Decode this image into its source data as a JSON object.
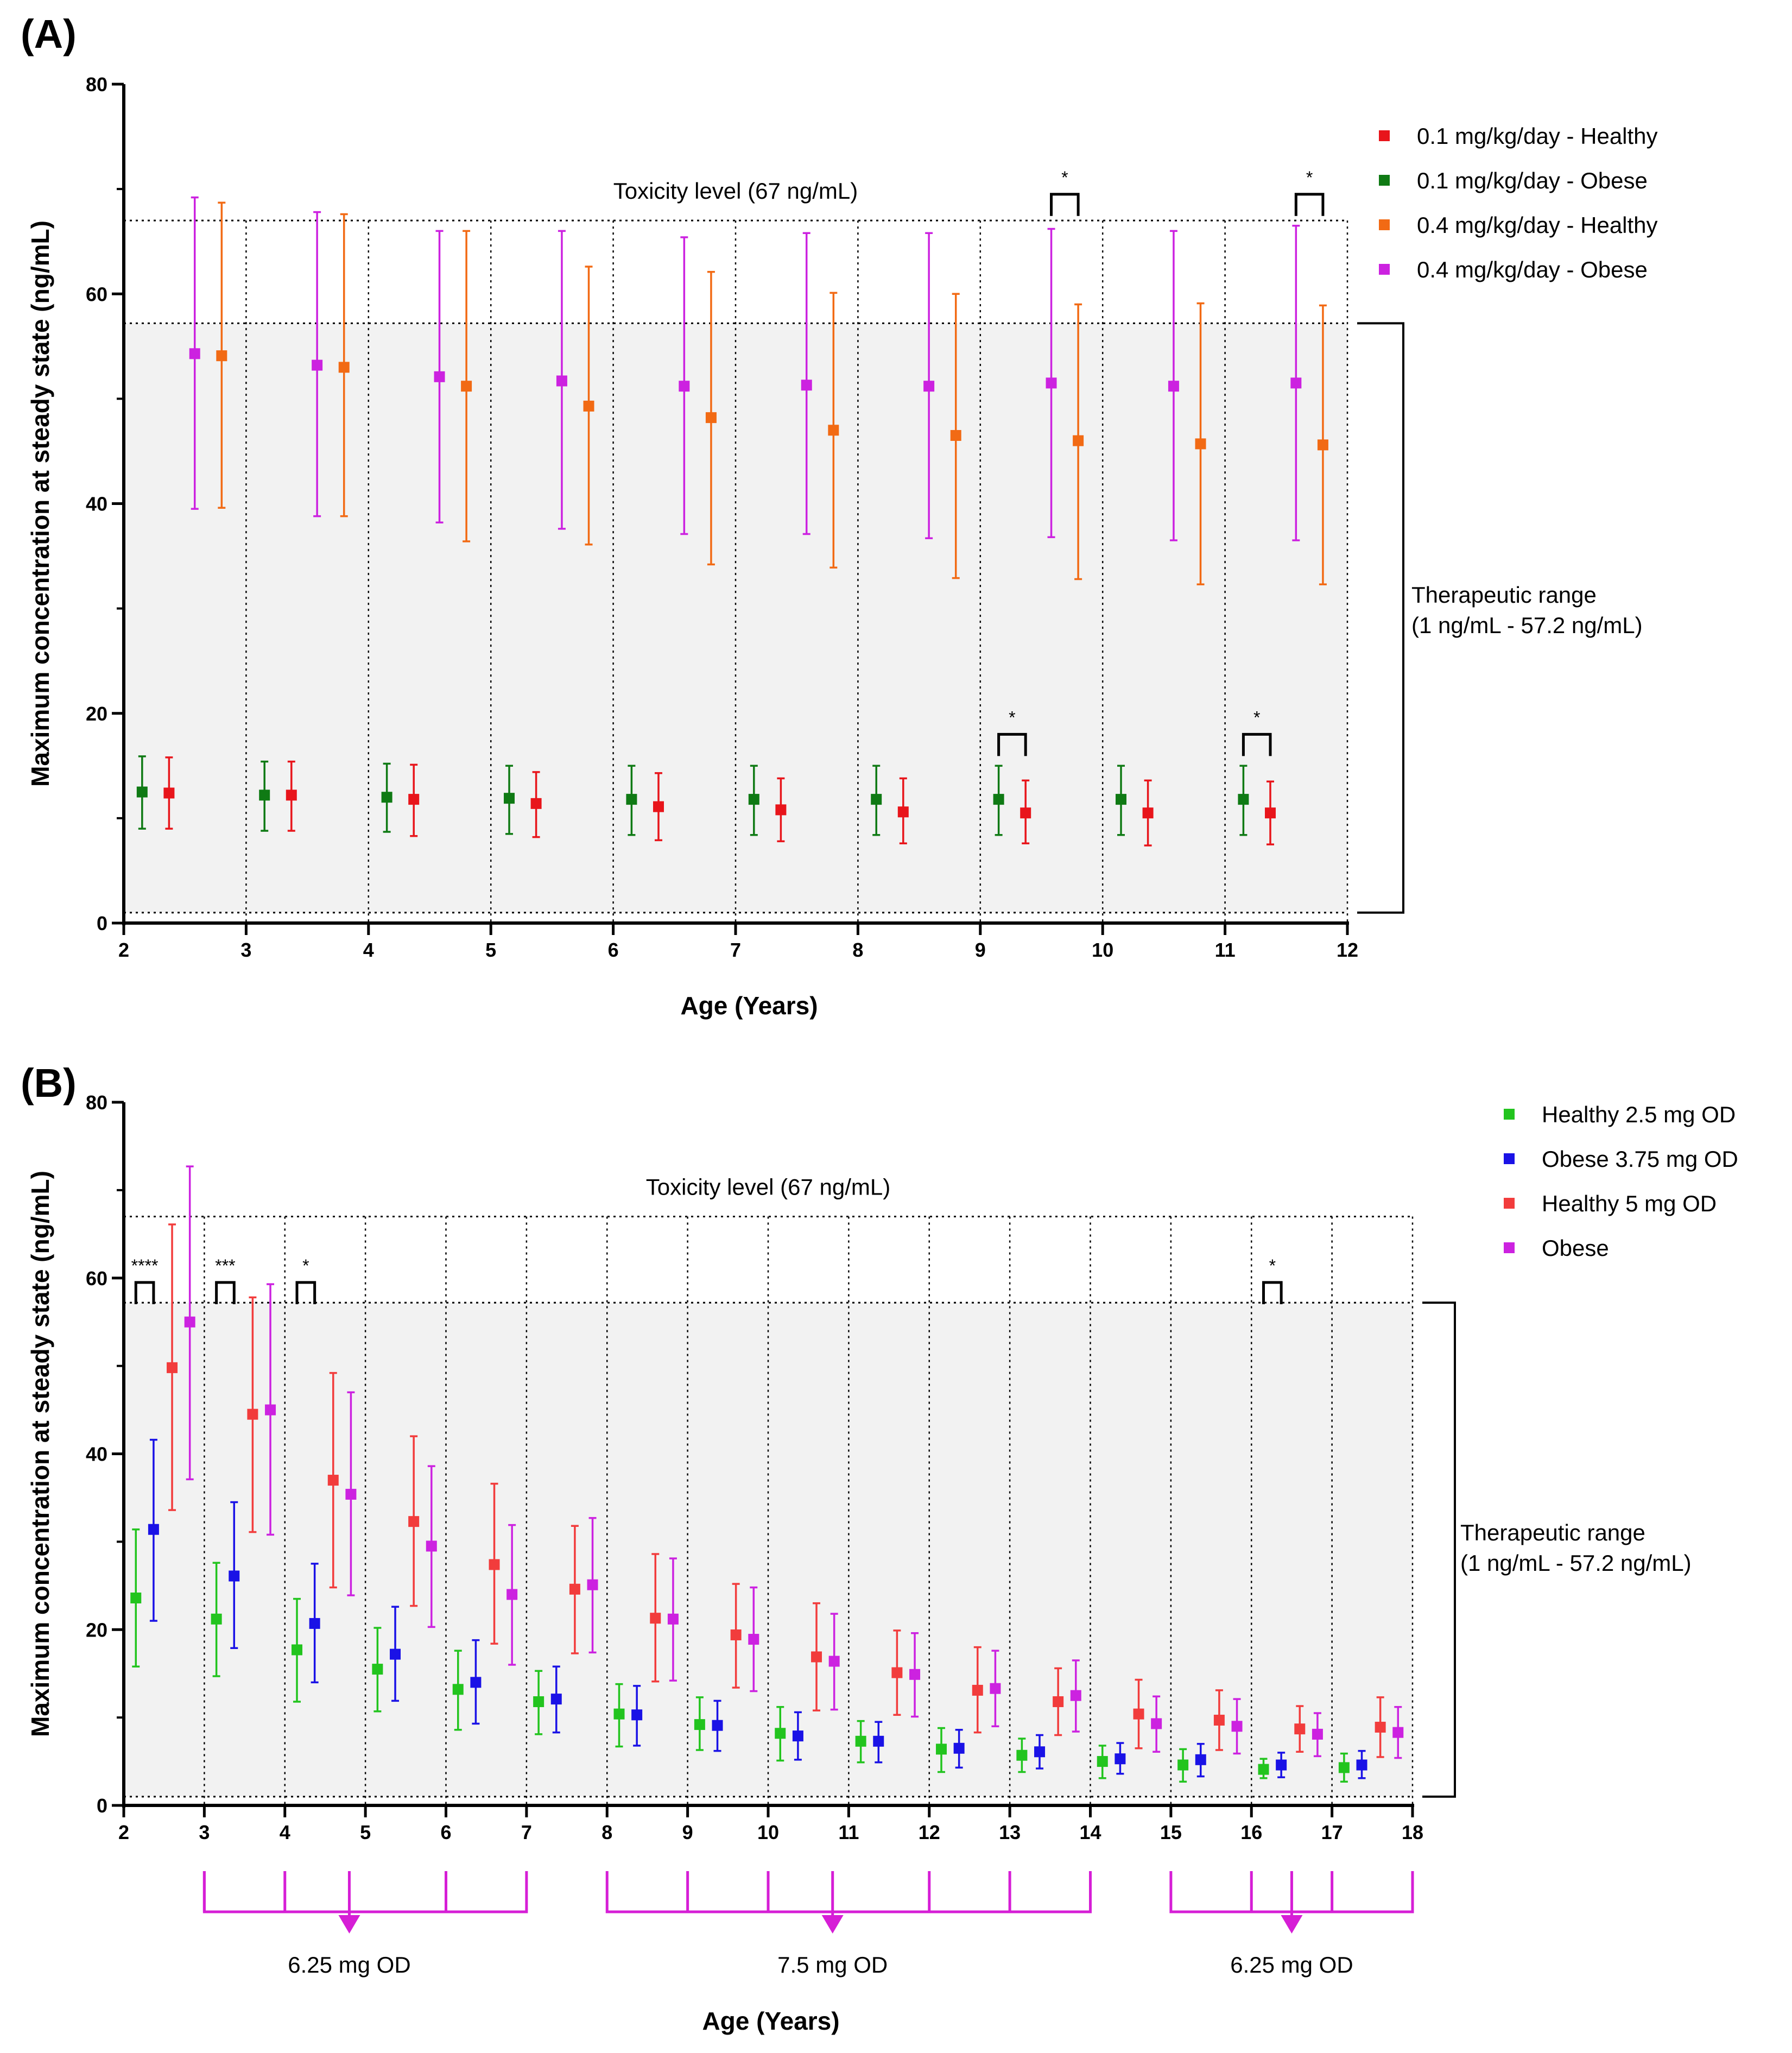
{
  "chart_data": [
    {
      "panel": "(A)",
      "type": "scatter",
      "xlabel": "Age (Years)",
      "ylabel": "Maximum concentration at steady state  (ng/mL)",
      "xlim": [
        2,
        12
      ],
      "ylim": [
        0,
        80
      ],
      "x_ticks": [
        "2",
        "3",
        "4",
        "5",
        "6",
        "7",
        "8",
        "9",
        "10",
        "11",
        "12"
      ],
      "y_ticks": [
        "0",
        "20",
        "40",
        "60",
        "80"
      ],
      "toxicity_label": "Toxicity level (67 ng/mL)",
      "toxicity_level": 67,
      "therapeutic_range": [
        1,
        57.2
      ],
      "therapeutic_label": [
        "Therapeutic range",
        "(1 ng/mL - 57.2 ng/mL)"
      ],
      "legend": [
        {
          "name": "0.1 mg/kg/day - Healthy",
          "color": "#e8151b"
        },
        {
          "name": "0.1 mg/kg/day - Obese",
          "color": "#0f7a14"
        },
        {
          "name": "0.4 mg/kg/day - Healthy",
          "color": "#f26a14"
        },
        {
          "name": "0.4 mg/kg/day - Obese",
          "color": "#cc22e0"
        }
      ],
      "series": [
        {
          "name": "0.1 mg/kg/day - Obese",
          "color": "#0f7a14",
          "offset": 0.15,
          "x": [
            2,
            3,
            4,
            5,
            6,
            7,
            8,
            9,
            10,
            11
          ],
          "values": [
            12.5,
            12.2,
            12.0,
            11.9,
            11.8,
            11.8,
            11.8,
            11.8,
            11.8,
            11.8
          ],
          "low": [
            9.0,
            8.8,
            8.7,
            8.5,
            8.4,
            8.4,
            8.4,
            8.4,
            8.4,
            8.4
          ],
          "high": [
            15.9,
            15.4,
            15.2,
            15.0,
            15.0,
            15.0,
            15.0,
            15.0,
            15.0,
            15.0
          ]
        },
        {
          "name": "0.1 mg/kg/day - Healthy",
          "color": "#e8151b",
          "offset": 0.37,
          "x": [
            2,
            3,
            4,
            5,
            6,
            7,
            8,
            9,
            10,
            11
          ],
          "values": [
            12.4,
            12.2,
            11.8,
            11.4,
            11.1,
            10.8,
            10.6,
            10.5,
            10.5,
            10.5
          ],
          "low": [
            9.0,
            8.8,
            8.3,
            8.2,
            7.9,
            7.8,
            7.6,
            7.6,
            7.4,
            7.5
          ],
          "high": [
            15.8,
            15.4,
            15.1,
            14.4,
            14.3,
            13.8,
            13.8,
            13.6,
            13.6,
            13.5
          ]
        },
        {
          "name": "0.4 mg/kg/day - Obese",
          "color": "#cc22e0",
          "offset": 0.58,
          "x": [
            2,
            3,
            4,
            5,
            6,
            7,
            8,
            9,
            10,
            11
          ],
          "values": [
            54.3,
            53.2,
            52.1,
            51.7,
            51.2,
            51.3,
            51.2,
            51.5,
            51.2,
            51.5
          ],
          "low": [
            39.5,
            38.8,
            38.2,
            37.6,
            37.1,
            37.1,
            36.7,
            36.8,
            36.5,
            36.5
          ],
          "high": [
            69.2,
            67.8,
            66.0,
            66.0,
            65.4,
            65.8,
            65.8,
            66.2,
            66.0,
            66.5
          ]
        },
        {
          "name": "0.4 mg/kg/day - Healthy",
          "color": "#f26a14",
          "offset": 0.8,
          "x": [
            2,
            3,
            4,
            5,
            6,
            7,
            8,
            9,
            10,
            11
          ],
          "values": [
            54.1,
            53.0,
            51.2,
            49.3,
            48.2,
            47.0,
            46.5,
            46.0,
            45.7,
            45.6
          ],
          "low": [
            39.6,
            38.8,
            36.4,
            36.1,
            34.2,
            33.9,
            32.9,
            32.8,
            32.3,
            32.3
          ],
          "high": [
            68.7,
            67.6,
            66.0,
            62.6,
            62.1,
            60.1,
            60.0,
            59.0,
            59.1,
            58.9
          ]
        }
      ],
      "annotations": [
        {
          "text": "*",
          "x1": 9.15,
          "x2": 9.37,
          "y": 18
        },
        {
          "text": "*",
          "x1": 11.15,
          "x2": 11.37,
          "y": 18
        },
        {
          "text": "*",
          "x1": 9.58,
          "x2": 9.8,
          "y": 69.5
        },
        {
          "text": "*",
          "x1": 11.58,
          "x2": 11.8,
          "y": 69.5
        }
      ]
    },
    {
      "panel": "(B)",
      "type": "scatter",
      "xlabel": "Age (Years)",
      "ylabel": "Maximum concentration at steady state  (ng/mL)",
      "xlim": [
        2,
        18
      ],
      "ylim": [
        0,
        80
      ],
      "x_ticks": [
        "2",
        "3",
        "4",
        "5",
        "6",
        "7",
        "8",
        "9",
        "10",
        "11",
        "12",
        "13",
        "14",
        "15",
        "16",
        "17",
        "18"
      ],
      "y_ticks": [
        "0",
        "20",
        "40",
        "60",
        "80"
      ],
      "toxicity_label": "Toxicity level (67 ng/mL)",
      "toxicity_level": 67,
      "therapeutic_range": [
        1,
        57.2
      ],
      "therapeutic_label": [
        "Therapeutic range",
        "(1 ng/mL - 57.2 ng/mL)"
      ],
      "legend": [
        {
          "name": "Healthy 2.5 mg OD",
          "color": "#22c41e"
        },
        {
          "name": "Obese 3.75 mg OD",
          "color": "#1a12e6"
        },
        {
          "name": "Healthy 5 mg OD",
          "color": "#f23c3c"
        },
        {
          "name": "Obese",
          "color": "#cc22e0"
        }
      ],
      "series": [
        {
          "name": "Healthy 2.5 mg OD",
          "color": "#22c41e",
          "offset": 0.15,
          "x": [
            2,
            3,
            4,
            5,
            6,
            7,
            8,
            9,
            10,
            11,
            12,
            13,
            14,
            15,
            16,
            17
          ],
          "values": [
            23.6,
            21.2,
            17.7,
            15.5,
            13.2,
            11.8,
            10.4,
            9.2,
            8.2,
            7.3,
            6.4,
            5.7,
            5.0,
            4.6,
            4.1,
            4.3
          ],
          "low": [
            15.8,
            14.7,
            11.8,
            10.7,
            8.6,
            8.1,
            6.7,
            6.3,
            5.1,
            4.9,
            3.8,
            3.8,
            3.1,
            2.7,
            3.1,
            2.7
          ],
          "high": [
            31.4,
            27.6,
            23.5,
            20.2,
            17.6,
            15.3,
            13.8,
            12.3,
            11.2,
            9.6,
            8.8,
            7.6,
            6.8,
            6.4,
            5.3,
            5.9
          ]
        },
        {
          "name": "Obese 3.75 mg OD",
          "color": "#1a12e6",
          "offset": 0.37,
          "x": [
            2,
            3,
            4,
            5,
            6,
            7,
            8,
            9,
            10,
            11,
            12,
            13,
            14,
            15,
            16,
            17
          ],
          "values": [
            31.4,
            26.1,
            20.7,
            17.2,
            14.0,
            12.1,
            10.3,
            9.1,
            7.9,
            7.3,
            6.5,
            6.1,
            5.3,
            5.2,
            4.6,
            4.6
          ],
          "low": [
            21.0,
            17.9,
            14.0,
            11.9,
            9.3,
            8.3,
            6.8,
            6.2,
            5.2,
            4.9,
            4.3,
            4.2,
            3.6,
            3.3,
            3.2,
            3.1
          ],
          "high": [
            41.6,
            34.5,
            27.5,
            22.6,
            18.8,
            15.8,
            13.6,
            11.9,
            10.6,
            9.5,
            8.6,
            8.0,
            7.1,
            7.0,
            6.0,
            6.2
          ]
        },
        {
          "name": "Healthy 5 mg OD",
          "color": "#f23c3c",
          "offset": 0.6,
          "x": [
            2,
            3,
            4,
            5,
            6,
            7,
            8,
            9,
            10,
            11,
            12,
            13,
            14,
            15,
            16,
            17
          ],
          "values": [
            49.8,
            44.5,
            37.0,
            32.3,
            27.4,
            24.6,
            21.3,
            19.4,
            16.9,
            15.1,
            13.1,
            11.8,
            10.4,
            9.7,
            8.7,
            8.9
          ],
          "low": [
            33.6,
            31.1,
            24.8,
            22.7,
            18.4,
            17.3,
            14.1,
            13.4,
            10.8,
            10.3,
            8.3,
            8.0,
            6.5,
            6.3,
            6.1,
            5.5
          ],
          "high": [
            66.1,
            57.8,
            49.2,
            42.0,
            36.6,
            31.8,
            28.6,
            25.2,
            23.0,
            19.9,
            18.0,
            15.6,
            14.3,
            13.1,
            11.3,
            12.3
          ]
        },
        {
          "name": "Obese",
          "color": "#cc22e0",
          "offset": 0.82,
          "x": [
            2,
            3,
            4,
            5,
            6,
            7,
            8,
            9,
            10,
            11,
            12,
            13,
            14,
            15,
            16,
            17
          ],
          "values": [
            55.0,
            45.0,
            35.4,
            29.5,
            24.0,
            25.1,
            21.2,
            18.9,
            16.4,
            14.9,
            13.3,
            12.5,
            9.3,
            9.0,
            8.1,
            8.3
          ],
          "low": [
            37.1,
            30.8,
            23.9,
            20.3,
            16.0,
            17.4,
            14.2,
            13.0,
            10.9,
            10.1,
            9.0,
            8.4,
            6.1,
            5.9,
            5.6,
            5.4
          ],
          "high": [
            72.7,
            59.3,
            47.0,
            38.6,
            31.9,
            32.7,
            28.1,
            24.8,
            21.8,
            19.6,
            17.6,
            16.5,
            12.4,
            12.1,
            10.5,
            11.2
          ]
        }
      ],
      "annotations": [
        {
          "text": "****",
          "x1": 2.15,
          "x2": 2.37,
          "y": 59.5
        },
        {
          "text": "***",
          "x1": 3.15,
          "x2": 3.37,
          "y": 59.5
        },
        {
          "text": "*",
          "x1": 4.15,
          "x2": 4.37,
          "y": 59.5
        },
        {
          "text": "*",
          "x1": 16.15,
          "x2": 16.37,
          "y": 59.5
        }
      ],
      "dose_groups": [
        {
          "label": "6.25 mg OD",
          "from": 3,
          "to": 7,
          "arrow_at": 4.8,
          "ticks": [
            3,
            4,
            6
          ]
        },
        {
          "label": "7.5 mg OD",
          "from": 8,
          "to": 14,
          "arrow_at": 10.8,
          "ticks": [
            9,
            10,
            12,
            13
          ]
        },
        {
          "label": "6.25 mg OD",
          "from": 15,
          "to": 18,
          "arrow_at": 16.5,
          "ticks": [
            16,
            17
          ]
        }
      ]
    }
  ]
}
